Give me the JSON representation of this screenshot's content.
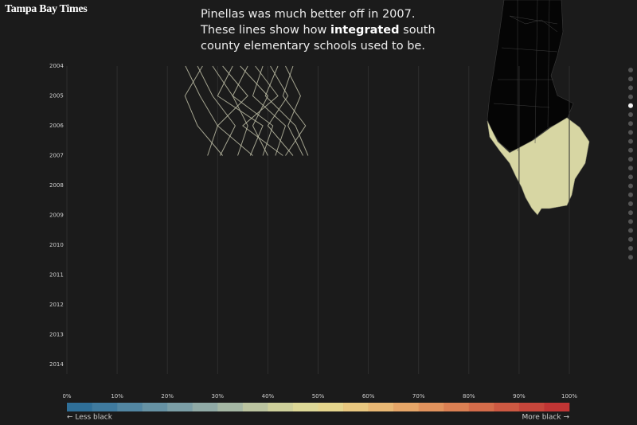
{
  "header": {
    "logo": "Tampa Bay Times"
  },
  "intro": {
    "before": "Pinellas was much better off in 2007. These lines show how ",
    "bold": "integrated",
    "after": " south county elementary schools used to be."
  },
  "chart_data": {
    "type": "line",
    "categories": [
      "2004",
      "2005",
      "2006",
      "2007",
      "2008",
      "2009",
      "2010",
      "2011",
      "2012",
      "2013",
      "2014"
    ],
    "xlim": [
      0,
      100
    ],
    "xticks": [
      {
        "value": 0,
        "label": "0%"
      },
      {
        "value": 10,
        "label": "10%"
      },
      {
        "value": 20,
        "label": "20%"
      },
      {
        "value": 30,
        "label": "30%"
      },
      {
        "value": 40,
        "label": "40%"
      },
      {
        "value": 50,
        "label": "50%"
      },
      {
        "value": 60,
        "label": "60%"
      },
      {
        "value": 70,
        "label": "70%"
      },
      {
        "value": 80,
        "label": "80%"
      },
      {
        "value": 90,
        "label": "90%"
      },
      {
        "value": 100,
        "label": "100%"
      }
    ],
    "grid": true,
    "series": [
      {
        "color": "#c5c6ad",
        "values": [
          23.6,
          26.5,
          30,
          28,
          null,
          null,
          null,
          null,
          null,
          null,
          null
        ]
      },
      {
        "color": "#c5c6ad",
        "values": [
          26,
          29,
          33.5,
          30.5,
          null,
          null,
          null,
          null,
          null,
          null,
          null
        ]
      },
      {
        "color": "#c5c6ad",
        "values": [
          27,
          23.5,
          26,
          31,
          null,
          null,
          null,
          null,
          null,
          null,
          null
        ]
      },
      {
        "color": "#c5c6ad",
        "values": [
          29,
          33,
          36,
          34,
          null,
          null,
          null,
          null,
          null,
          null,
          null
        ]
      },
      {
        "color": "#c5c6ad",
        "values": [
          31,
          36,
          30,
          37,
          null,
          null,
          null,
          null,
          null,
          null,
          null
        ]
      },
      {
        "color": "#c5c6ad",
        "values": [
          33,
          30,
          39,
          36.5,
          null,
          null,
          null,
          null,
          null,
          null,
          null
        ]
      },
      {
        "color": "#c5c6ad",
        "values": [
          34.5,
          40,
          37,
          40,
          null,
          null,
          null,
          null,
          null,
          null,
          null
        ]
      },
      {
        "color": "#c5c6ad",
        "values": [
          36,
          33,
          41,
          39,
          null,
          null,
          null,
          null,
          null,
          null,
          null
        ]
      },
      {
        "color": "#c5c6ad",
        "values": [
          37.5,
          42,
          35,
          43,
          null,
          null,
          null,
          null,
          null,
          null,
          null
        ]
      },
      {
        "color": "#c5c6ad",
        "values": [
          39,
          37,
          43.5,
          41.5,
          null,
          null,
          null,
          null,
          null,
          null,
          null
        ]
      },
      {
        "color": "#c5c6ad",
        "values": [
          40.5,
          44,
          40,
          45,
          null,
          null,
          null,
          null,
          null,
          null,
          null
        ]
      },
      {
        "color": "#c5c6ad",
        "values": [
          42,
          39.5,
          45.5,
          48,
          null,
          null,
          null,
          null,
          null,
          null,
          null
        ]
      },
      {
        "color": "#c5c6ad",
        "values": [
          43.5,
          46.5,
          44,
          47,
          null,
          null,
          null,
          null,
          null,
          null,
          null
        ]
      },
      {
        "color": "#c5c6ad",
        "values": [
          45,
          43,
          47.5,
          43.5,
          null,
          null,
          null,
          null,
          null,
          null,
          null
        ]
      }
    ],
    "color_scale": [
      "#2f6f98",
      "#3f7a9e",
      "#5286a2",
      "#6692a4",
      "#7b9ea6",
      "#90aaa6",
      "#a5b7a4",
      "#bbc4a0",
      "#ced09b",
      "#ddd897",
      "#e5d58d",
      "#e9c880",
      "#e9b874",
      "#e6a668",
      "#e1935d",
      "#db8053",
      "#d46c4a",
      "#cd5942",
      "#c7463b",
      "#c13534"
    ],
    "legend_low": "← Less black",
    "legend_high": "More black →"
  }
}
